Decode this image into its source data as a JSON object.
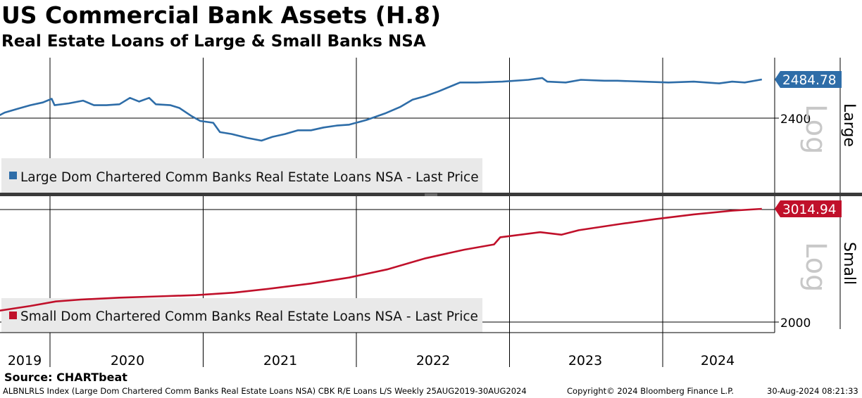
{
  "header": {
    "title": "US Commercial Bank Assets (H.8)",
    "subtitle": "Real Estate Loans of Large & Small Banks NSA"
  },
  "footer": {
    "source": "Source: CHARTbeat",
    "index_desc": "ALBNLRLS Index (Large Dom Chartered Comm Banks Real Estate Loans NSA) CBK R/E Loans L/S  Weekly 25AUG2019-30AUG2024",
    "copyright": "Copyright© 2024 Bloomberg Finance L.P.",
    "timestamp": "30-Aug-2024 08:21:33"
  },
  "chart_data": [
    {
      "type": "line",
      "panel": "top",
      "side_label": "Large",
      "scale_label": "Log",
      "log_scale": true,
      "legend": "Large Dom Chartered Comm Banks Real Estate Loans NSA - Last Price",
      "last_price": "2484.78",
      "y_tick_labels": [
        "2400"
      ],
      "y_ticks": [
        2400
      ],
      "color": "#2e6da8",
      "x_labels": [
        "2019",
        "2020",
        "2021",
        "2022",
        "2023",
        "2024"
      ],
      "x_range": [
        "2019-08-25",
        "2024-12-31"
      ],
      "points": [
        [
          "2019-08-25",
          2402
        ],
        [
          "2019-09-15",
          2412
        ],
        [
          "2019-10-15",
          2420
        ],
        [
          "2019-11-15",
          2428
        ],
        [
          "2019-12-15",
          2434
        ],
        [
          "2020-01-05",
          2442
        ],
        [
          "2020-01-12",
          2428
        ],
        [
          "2020-02-15",
          2432
        ],
        [
          "2020-03-20",
          2438
        ],
        [
          "2020-04-15",
          2428
        ],
        [
          "2020-05-15",
          2428
        ],
        [
          "2020-06-15",
          2430
        ],
        [
          "2020-07-10",
          2444
        ],
        [
          "2020-08-01",
          2436
        ],
        [
          "2020-08-25",
          2444
        ],
        [
          "2020-09-10",
          2430
        ],
        [
          "2020-10-15",
          2428
        ],
        [
          "2020-11-05",
          2422
        ],
        [
          "2020-12-05",
          2404
        ],
        [
          "2020-12-25",
          2394
        ],
        [
          "2021-01-25",
          2390
        ],
        [
          "2021-02-10",
          2370
        ],
        [
          "2021-03-10",
          2366
        ],
        [
          "2021-04-15",
          2358
        ],
        [
          "2021-05-20",
          2352
        ],
        [
          "2021-06-15",
          2360
        ],
        [
          "2021-07-15",
          2366
        ],
        [
          "2021-08-15",
          2374
        ],
        [
          "2021-09-15",
          2374
        ],
        [
          "2021-10-15",
          2380
        ],
        [
          "2021-11-15",
          2384
        ],
        [
          "2021-12-15",
          2386
        ],
        [
          "2022-01-25",
          2396
        ],
        [
          "2022-03-10",
          2410
        ],
        [
          "2022-04-15",
          2424
        ],
        [
          "2022-05-15",
          2440
        ],
        [
          "2022-06-15",
          2448
        ],
        [
          "2022-07-15",
          2458
        ],
        [
          "2022-08-15",
          2470
        ],
        [
          "2022-09-05",
          2478
        ],
        [
          "2022-10-15",
          2478
        ],
        [
          "2022-12-15",
          2480
        ],
        [
          "2023-02-15",
          2484
        ],
        [
          "2023-03-20",
          2488
        ],
        [
          "2023-04-01",
          2480
        ],
        [
          "2023-05-15",
          2478
        ],
        [
          "2023-06-20",
          2484
        ],
        [
          "2023-08-15",
          2482
        ],
        [
          "2023-09-15",
          2482
        ],
        [
          "2023-11-15",
          2480
        ],
        [
          "2024-01-15",
          2478
        ],
        [
          "2024-03-15",
          2480
        ],
        [
          "2024-05-15",
          2476
        ],
        [
          "2024-06-15",
          2480
        ],
        [
          "2024-07-15",
          2478
        ],
        [
          "2024-08-25",
          2484.78
        ]
      ]
    },
    {
      "type": "line",
      "panel": "bottom",
      "side_label": "Small",
      "scale_label": "Log",
      "log_scale": true,
      "legend": "Small Dom Chartered Comm Banks Real Estate Loans NSA - Last Price",
      "last_price": "3014.94",
      "y_tick_labels": [
        "2000"
      ],
      "y_ticks": [
        2000
      ],
      "color": "#c0102a",
      "x_labels": [
        "2019",
        "2020",
        "2021",
        "2022",
        "2023",
        "2024"
      ],
      "x_range": [
        "2019-08-25",
        "2024-12-31"
      ],
      "points": [
        [
          "2019-08-25",
          2080
        ],
        [
          "2019-11-15",
          2120
        ],
        [
          "2020-01-15",
          2155
        ],
        [
          "2020-03-15",
          2170
        ],
        [
          "2020-06-15",
          2185
        ],
        [
          "2020-09-15",
          2195
        ],
        [
          "2020-12-15",
          2205
        ],
        [
          "2021-03-15",
          2225
        ],
        [
          "2021-06-15",
          2260
        ],
        [
          "2021-09-15",
          2300
        ],
        [
          "2021-12-15",
          2350
        ],
        [
          "2022-03-15",
          2420
        ],
        [
          "2022-06-15",
          2520
        ],
        [
          "2022-09-15",
          2600
        ],
        [
          "2022-11-25",
          2650
        ],
        [
          "2022-12-10",
          2720
        ],
        [
          "2023-03-15",
          2770
        ],
        [
          "2023-05-05",
          2745
        ],
        [
          "2023-06-15",
          2790
        ],
        [
          "2023-09-15",
          2850
        ],
        [
          "2023-12-15",
          2905
        ],
        [
          "2024-03-15",
          2955
        ],
        [
          "2024-06-15",
          2995
        ],
        [
          "2024-08-25",
          3014.94
        ]
      ]
    }
  ]
}
